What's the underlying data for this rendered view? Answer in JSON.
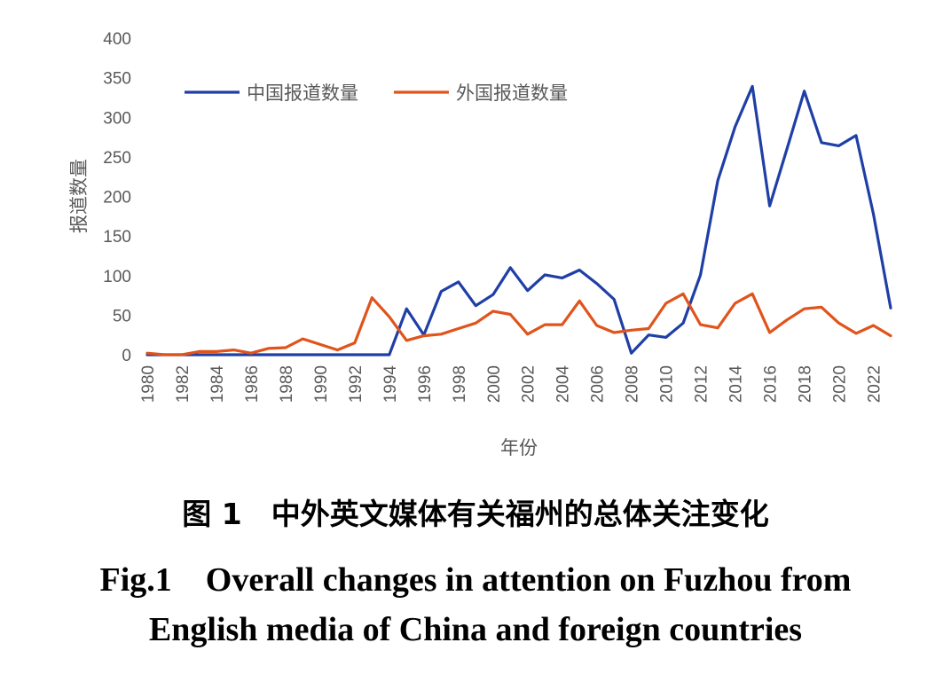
{
  "chart_data": {
    "type": "line",
    "xlabel": "年份",
    "ylabel": "报道数量",
    "ylim": [
      0,
      400
    ],
    "yticks": [
      0,
      50,
      100,
      150,
      200,
      250,
      300,
      350,
      400
    ],
    "xlim": [
      1980,
      2023
    ],
    "xticks": [
      1980,
      1982,
      1984,
      1986,
      1988,
      1990,
      1992,
      1994,
      1996,
      1998,
      2000,
      2002,
      2004,
      2006,
      2008,
      2010,
      2012,
      2014,
      2016,
      2018,
      2020,
      2022
    ],
    "grid": false,
    "legend_position": "top-left",
    "x": [
      1980,
      1981,
      1982,
      1983,
      1984,
      1985,
      1986,
      1987,
      1988,
      1989,
      1990,
      1991,
      1992,
      1993,
      1994,
      1995,
      1996,
      1997,
      1998,
      1999,
      2000,
      2001,
      2002,
      2003,
      2004,
      2005,
      2006,
      2007,
      2008,
      2009,
      2010,
      2011,
      2012,
      2013,
      2014,
      2015,
      2016,
      2017,
      2018,
      2019,
      2020,
      2021,
      2022,
      2023
    ],
    "series": [
      {
        "name": "中国报道数量",
        "color": "#1f3fa6",
        "values": [
          0,
          0,
          0,
          0,
          0,
          0,
          0,
          0,
          0,
          0,
          0,
          0,
          0,
          0,
          0,
          58,
          25,
          80,
          92,
          62,
          76,
          110,
          81,
          101,
          97,
          107,
          90,
          70,
          2,
          25,
          22,
          40,
          101,
          220,
          288,
          339,
          188,
          260,
          333,
          268,
          264,
          277,
          178,
          59
        ]
      },
      {
        "name": "外国报道数量",
        "color": "#e0541b",
        "values": [
          2,
          0,
          0,
          4,
          4,
          6,
          2,
          8,
          9,
          20,
          13,
          6,
          15,
          72,
          48,
          18,
          24,
          26,
          33,
          40,
          55,
          51,
          26,
          38,
          38,
          68,
          37,
          28,
          31,
          33,
          65,
          77,
          38,
          34,
          65,
          77,
          28,
          44,
          58,
          60,
          40,
          27,
          37,
          24
        ]
      }
    ]
  },
  "caption": {
    "zh": "图 1　中外英文媒体有关福州的总体关注变化",
    "en_line1": "Fig.1　Overall changes in attention on Fuzhou from",
    "en_line2": "English media of China and foreign countries"
  }
}
